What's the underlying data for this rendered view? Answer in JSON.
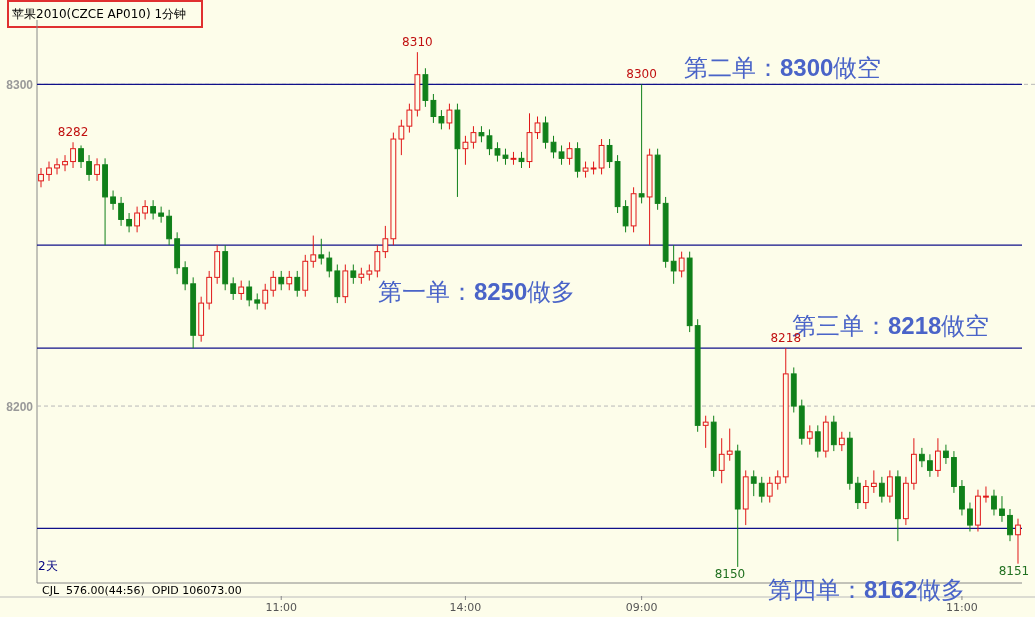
{
  "chart_data": {
    "type": "candlestick",
    "title": "苹果2010(CZCE AP010)  1分钟",
    "categories": [
      null,
      null,
      null,
      null,
      null,
      null,
      null,
      null,
      null,
      null,
      null,
      null,
      null,
      null,
      null,
      null,
      null,
      null,
      null,
      null,
      null,
      null,
      null,
      null,
      null,
      null,
      null,
      null,
      null,
      null,
      "11:00",
      null,
      null,
      null,
      null,
      null,
      null,
      null,
      null,
      null,
      null,
      null,
      null,
      null,
      null,
      null,
      null,
      null,
      null,
      null,
      null,
      null,
      null,
      "14:00",
      null,
      null,
      null,
      null,
      null,
      null,
      null,
      null,
      null,
      null,
      null,
      null,
      null,
      null,
      null,
      null,
      null,
      null,
      null,
      null,
      null,
      "09:00",
      null,
      null,
      null,
      null,
      null,
      null,
      null,
      null,
      null,
      null,
      null,
      null,
      null,
      null,
      null,
      null,
      null,
      null,
      null,
      null,
      null,
      null,
      null,
      null,
      null,
      null,
      null,
      null,
      null,
      null,
      null,
      null,
      null,
      null,
      null,
      null,
      null,
      null,
      null,
      "11:00",
      null,
      null,
      null,
      null,
      null,
      null,
      null
    ],
    "ohlc": [
      [
        8270,
        8274,
        8268,
        8272
      ],
      [
        8272,
        8276,
        8270,
        8274
      ],
      [
        8274,
        8277,
        8272,
        8275
      ],
      [
        8275,
        8278,
        8273,
        8276
      ],
      [
        8276,
        8282,
        8274,
        8280
      ],
      [
        8280,
        8281,
        8274,
        8276
      ],
      [
        8276,
        8278,
        8270,
        8272
      ],
      [
        8272,
        8277,
        8270,
        8275
      ],
      [
        8275,
        8277,
        8250,
        8265
      ],
      [
        8265,
        8267,
        8261,
        8263
      ],
      [
        8263,
        8265,
        8256,
        8258
      ],
      [
        8258,
        8260,
        8254,
        8256
      ],
      [
        8256,
        8262,
        8254,
        8260
      ],
      [
        8260,
        8264,
        8258,
        8262
      ],
      [
        8262,
        8264,
        8258,
        8260
      ],
      [
        8260,
        8262,
        8257,
        8259
      ],
      [
        8259,
        8261,
        8250,
        8252
      ],
      [
        8252,
        8254,
        8241,
        8243
      ],
      [
        8243,
        8245,
        8236,
        8238
      ],
      [
        8238,
        8240,
        8218,
        8222
      ],
      [
        8222,
        8234,
        8220,
        8232
      ],
      [
        8232,
        8242,
        8230,
        8240
      ],
      [
        8240,
        8250,
        8238,
        8248
      ],
      [
        8248,
        8250,
        8236,
        8238
      ],
      [
        8238,
        8240,
        8233,
        8235
      ],
      [
        8235,
        8239,
        8233,
        8237
      ],
      [
        8237,
        8239,
        8231,
        8233
      ],
      [
        8233,
        8235,
        8230,
        8232
      ],
      [
        8232,
        8238,
        8230,
        8236
      ],
      [
        8236,
        8242,
        8234,
        8240
      ],
      [
        8240,
        8242,
        8236,
        8238
      ],
      [
        8238,
        8242,
        8236,
        8240
      ],
      [
        8240,
        8242,
        8234,
        8236
      ],
      [
        8236,
        8247,
        8234,
        8245
      ],
      [
        8245,
        8253,
        8243,
        8247
      ],
      [
        8247,
        8252,
        8244,
        8246
      ],
      [
        8246,
        8248,
        8240,
        8242
      ],
      [
        8242,
        8244,
        8232,
        8234
      ],
      [
        8234,
        8244,
        8232,
        8242
      ],
      [
        8242,
        8244,
        8238,
        8240
      ],
      [
        8240,
        8243,
        8238,
        8241
      ],
      [
        8241,
        8244,
        8239,
        8242
      ],
      [
        8242,
        8250,
        8240,
        8248
      ],
      [
        8248,
        8256,
        8246,
        8252
      ],
      [
        8252,
        8285,
        8250,
        8283
      ],
      [
        8283,
        8289,
        8278,
        8287
      ],
      [
        8287,
        8294,
        8285,
        8292
      ],
      [
        8292,
        8310,
        8290,
        8303
      ],
      [
        8303,
        8305,
        8293,
        8295
      ],
      [
        8295,
        8297,
        8288,
        8290
      ],
      [
        8290,
        8292,
        8286,
        8288
      ],
      [
        8288,
        8294,
        8286,
        8292
      ],
      [
        8292,
        8294,
        8265,
        8280
      ],
      [
        8280,
        8284,
        8275,
        8282
      ],
      [
        8282,
        8287,
        8280,
        8285
      ],
      [
        8285,
        8287,
        8282,
        8284
      ],
      [
        8284,
        8286,
        8278,
        8280
      ],
      [
        8280,
        8282,
        8276,
        8278
      ],
      [
        8278,
        8280,
        8275,
        8277
      ],
      [
        8277,
        8279,
        8275,
        8277
      ],
      [
        8277,
        8279,
        8274,
        8276
      ],
      [
        8276,
        8291,
        8274,
        8285
      ],
      [
        8285,
        8290,
        8283,
        8288
      ],
      [
        8288,
        8290,
        8280,
        8282
      ],
      [
        8282,
        8284,
        8277,
        8279
      ],
      [
        8279,
        8281,
        8275,
        8277
      ],
      [
        8277,
        8282,
        8275,
        8280
      ],
      [
        8280,
        8282,
        8271,
        8273
      ],
      [
        8273,
        8276,
        8271,
        8274
      ],
      [
        8274,
        8276,
        8272,
        8274
      ],
      [
        8274,
        8283,
        8272,
        8281
      ],
      [
        8281,
        8283,
        8274,
        8276
      ],
      [
        8276,
        8278,
        8260,
        8262
      ],
      [
        8262,
        8264,
        8254,
        8256
      ],
      [
        8256,
        8268,
        8254,
        8266
      ],
      [
        8266,
        8300,
        8263,
        8265
      ],
      [
        8265,
        8280,
        8250,
        8278
      ],
      [
        8278,
        8280,
        8261,
        8263
      ],
      [
        8263,
        8265,
        8243,
        8245
      ],
      [
        8245,
        8250,
        8238,
        8242
      ],
      [
        8242,
        8248,
        8240,
        8246
      ],
      [
        8246,
        8248,
        8223,
        8225
      ],
      [
        8225,
        8227,
        8192,
        8194
      ],
      [
        8194,
        8197,
        8187,
        8195
      ],
      [
        8195,
        8197,
        8178,
        8180
      ],
      [
        8180,
        8190,
        8176,
        8185
      ],
      [
        8185,
        8193,
        8183,
        8186
      ],
      [
        8186,
        8188,
        8150,
        8168
      ],
      [
        8168,
        8180,
        8163,
        8178
      ],
      [
        8178,
        8180,
        8172,
        8176
      ],
      [
        8176,
        8178,
        8170,
        8172
      ],
      [
        8172,
        8178,
        8170,
        8176
      ],
      [
        8176,
        8180,
        8174,
        8178
      ],
      [
        8178,
        8218,
        8176,
        8210
      ],
      [
        8210,
        8212,
        8198,
        8200
      ],
      [
        8200,
        8202,
        8188,
        8190
      ],
      [
        8190,
        8194,
        8188,
        8192
      ],
      [
        8192,
        8194,
        8184,
        8186
      ],
      [
        8186,
        8197,
        8184,
        8195
      ],
      [
        8195,
        8197,
        8186,
        8188
      ],
      [
        8188,
        8192,
        8186,
        8190
      ],
      [
        8190,
        8192,
        8174,
        8176
      ],
      [
        8176,
        8178,
        8168,
        8170
      ],
      [
        8170,
        8177,
        8168,
        8175
      ],
      [
        8175,
        8180,
        8173,
        8176
      ],
      [
        8176,
        8178,
        8170,
        8172
      ],
      [
        8172,
        8180,
        8170,
        8178
      ],
      [
        8178,
        8180,
        8158,
        8165
      ],
      [
        8165,
        8178,
        8163,
        8176
      ],
      [
        8176,
        8190,
        8174,
        8185
      ],
      [
        8185,
        8187,
        8181,
        8183
      ],
      [
        8183,
        8185,
        8178,
        8180
      ],
      [
        8180,
        8190,
        8178,
        8186
      ],
      [
        8186,
        8188,
        8182,
        8184
      ],
      [
        8184,
        8186,
        8173,
        8175
      ],
      [
        8175,
        8177,
        8166,
        8168
      ],
      [
        8168,
        8170,
        8161,
        8163
      ],
      [
        8163,
        8174,
        8161,
        8172
      ],
      [
        8172,
        8175,
        8170,
        8172
      ],
      [
        8172,
        8174,
        8166,
        8168
      ],
      [
        8168,
        8172,
        8164,
        8166
      ],
      [
        8166,
        8168,
        8158,
        8160
      ],
      [
        8160,
        8165,
        8151,
        8163
      ]
    ],
    "ylim": [
      8145,
      8320
    ],
    "yticks": [
      8200,
      8300
    ],
    "grid": "y",
    "ref_lines": [
      {
        "axis": "y",
        "value": 8250,
        "label": "第一单：**8250**做多"
      },
      {
        "axis": "y",
        "value": 8300,
        "label": "第二单：**8300**做空"
      },
      {
        "axis": "y",
        "value": 8218,
        "label": "第三单：**8218**做空"
      },
      {
        "axis": "y",
        "value": 8162,
        "label": "第四单：**8162**做多"
      }
    ],
    "annotations": [
      {
        "text": "8282",
        "y": 8282
      },
      {
        "text": "8218",
        "y": 8218
      },
      {
        "text": "8310",
        "y": 8310
      },
      {
        "text": "8300",
        "y": 8300
      },
      "8150",
      "8151",
      "2天",
      "CJL  576.00(44:56)  OPID 106073.00"
    ]
  }
}
